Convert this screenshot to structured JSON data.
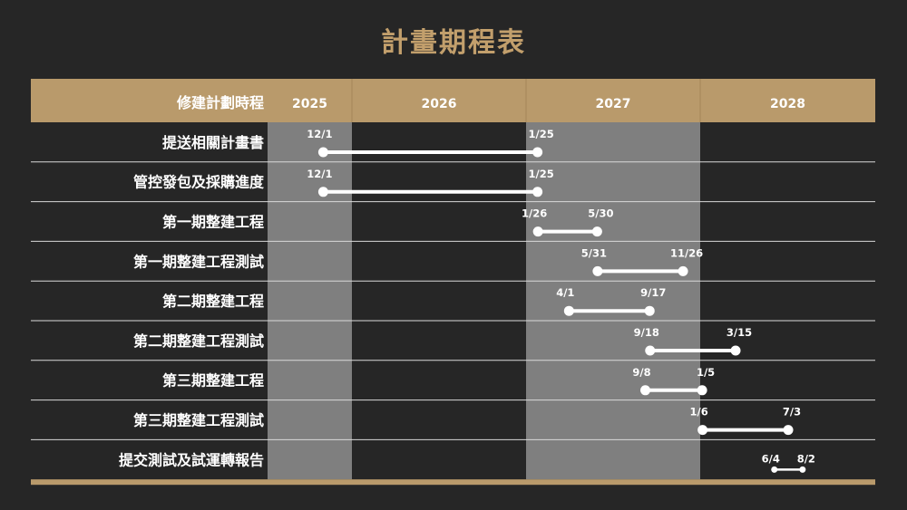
{
  "title": "計畫期程表",
  "colors": {
    "background": "#262626",
    "header": "#b99a6b",
    "shade": "#7f7f7f",
    "bar": "#ffffff",
    "grid": "#d9d9d9",
    "text": "#ffffff",
    "title": "#c29f6c"
  },
  "chart_data": {
    "type": "gantt",
    "header_label": "修建計劃時程",
    "years": [
      "2025",
      "2026",
      "2027",
      "2028"
    ],
    "tasks": [
      {
        "name": "提送相關計畫書",
        "start": "2025-12-01",
        "end": "2027-01-25",
        "start_label": "12/1",
        "end_label": "1/25"
      },
      {
        "name": "管控發包及採購進度",
        "start": "2025-12-01",
        "end": "2027-01-25",
        "start_label": "12/1",
        "end_label": "1/25"
      },
      {
        "name": "第一期整建工程",
        "start": "2027-01-26",
        "end": "2027-05-30",
        "start_label": "1/26",
        "end_label": "5/30"
      },
      {
        "name": "第一期整建工程測試",
        "start": "2027-05-31",
        "end": "2027-11-26",
        "start_label": "5/31",
        "end_label": "11/26"
      },
      {
        "name": "第二期整建工程",
        "start": "2027-04-01",
        "end": "2027-09-17",
        "start_label": "4/1",
        "end_label": "9/17"
      },
      {
        "name": "第二期整建工程測試",
        "start": "2027-09-18",
        "end": "2028-03-15",
        "start_label": "9/18",
        "end_label": "3/15"
      },
      {
        "name": "第三期整建工程",
        "start": "2027-09-08",
        "end": "2028-01-05",
        "start_label": "9/8",
        "end_label": "1/5"
      },
      {
        "name": "第三期整建工程測試",
        "start": "2028-01-06",
        "end": "2028-07-03",
        "start_label": "1/6",
        "end_label": "7/3"
      },
      {
        "name": "提交測試及試運轉報告",
        "start": "2028-06-04",
        "end": "2028-08-02",
        "start_label": "6/4",
        "end_label": "8/2"
      }
    ]
  }
}
